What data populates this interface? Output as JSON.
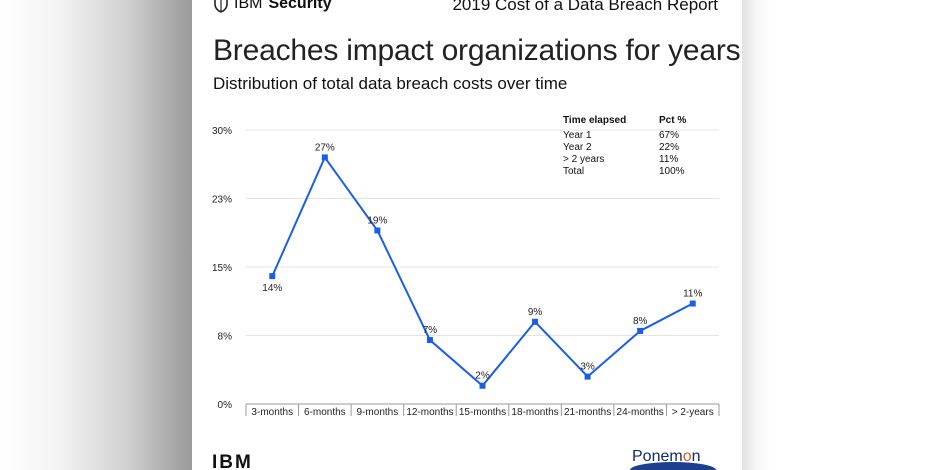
{
  "header": {
    "brand_prefix": "IBM",
    "brand_name": "Security",
    "report_title": "2019 Cost of a Data Breach Report"
  },
  "title": "Breaches impact organizations for years",
  "subtitle": "Distribution of total data breach costs over time",
  "legend_table": {
    "headers": [
      "Time elapsed",
      "Pct %"
    ],
    "rows": [
      [
        "Year 1",
        "67%"
      ],
      [
        "Year 2",
        "22%"
      ],
      [
        "> 2 years",
        "11%"
      ],
      [
        "Total",
        "100%"
      ]
    ]
  },
  "footer": {
    "ibm_logo_text": "IBM",
    "ponemon_pre": "Ponem",
    "ponemon_o": "o",
    "ponemon_post": "n"
  },
  "colors": {
    "line": "#1a5ee6",
    "grid": "#e4e4e4",
    "axis": "#9a9a9a"
  },
  "chart_data": {
    "type": "line",
    "categories": [
      "3-months",
      "6-months",
      "9-months",
      "12-months",
      "15-months",
      "18-months",
      "21-months",
      "24-months",
      "> 2-years"
    ],
    "values": [
      14,
      27,
      19,
      7,
      2,
      9,
      3,
      8,
      11
    ],
    "data_labels": [
      "14%",
      "27%",
      "19%",
      "7%",
      "2%",
      "9%",
      "3%",
      "8%",
      "11%"
    ],
    "ytick_labels": [
      "0%",
      "8%",
      "15%",
      "23%",
      "30%"
    ],
    "ylim": [
      0,
      30
    ],
    "grid": true
  }
}
